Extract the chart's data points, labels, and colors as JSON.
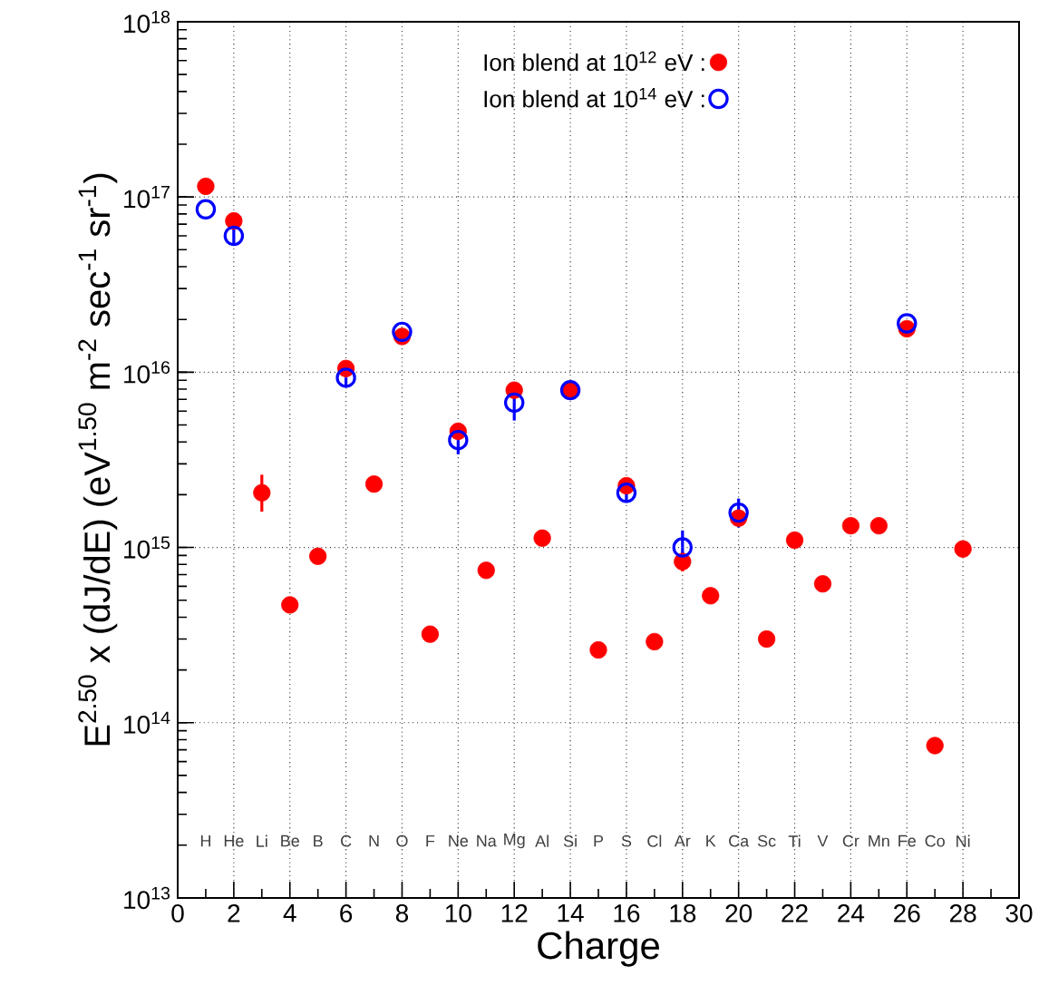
{
  "chart_data": {
    "type": "scatter",
    "xlabel": "Charge",
    "ylabel": "E$^{2.50}$ x (dJ/dE)  (eV$^{1.50}$ m$^{-2}$ sec$^{-1}$ sr$^{-1}$)",
    "log": "y",
    "grid": true,
    "legend": "top right",
    "marker": "circle",
    "xlim": [
      0,
      30
    ],
    "xticks": [
      0,
      2,
      4,
      6,
      8,
      10,
      12,
      14,
      16,
      18,
      20,
      22,
      24,
      26,
      28,
      30
    ],
    "ylim": [
      10000000000000.0,
      1e+18
    ],
    "yticks": [
      {
        "value": 10000000000000.0,
        "label": "10$^{13}$"
      },
      {
        "value": 100000000000000.0,
        "label": "10$^{14}$"
      },
      {
        "value": 1000000000000000.0,
        "label": "10$^{15}$"
      },
      {
        "value": 1e+16,
        "label": "10$^{16}$"
      },
      {
        "value": 1e+17,
        "label": "10$^{17}$"
      },
      {
        "value": 1e+18,
        "label": "10$^{18}$"
      }
    ],
    "series": [
      {
        "name": "Ion blend at 10$^{12}$ eV :",
        "color": "#ff0000",
        "x": [
          1,
          2,
          3,
          4,
          5,
          6,
          7,
          8,
          9,
          10,
          11,
          12,
          13,
          14,
          15,
          16,
          17,
          18,
          19,
          20,
          21,
          22,
          23,
          24,
          25,
          26,
          27,
          28
        ],
        "values": [
          1.15e+17,
          7.3e+16,
          2050000000000000.0,
          470000000000000.0,
          890000000000000.0,
          1.05e+16,
          2300000000000000.0,
          1.6e+16,
          320000000000000.0,
          4600000000000000.0,
          740000000000000.0,
          7900000000000000.0,
          1130000000000000.0,
          7900000000000000.0,
          260000000000000.0,
          2250000000000000.0,
          290000000000000.0,
          830000000000000.0,
          530000000000000.0,
          1470000000000000.0,
          300000000000000.0,
          1100000000000000.0,
          620000000000000.0,
          1330000000000000.0,
          1330000000000000.0,
          1.77e+16,
          74000000000000.0,
          980000000000000.0
        ],
        "errors": [
          null,
          null,
          [
            1600000000000000.0,
            2600000000000000.0
          ],
          null,
          null,
          null,
          null,
          null,
          [
            290000000000000.0,
            350000000000000.0
          ],
          null,
          null,
          null,
          null,
          null,
          null,
          null,
          null,
          [
            730000000000000.0,
            940000000000000.0
          ],
          null,
          null,
          null,
          null,
          null,
          null,
          null,
          null,
          null,
          null
        ]
      },
      {
        "name": "Ion blend at 10$^{14}$ eV :",
        "color": "#0000ff",
        "x": [
          1,
          2,
          6,
          8,
          10,
          12,
          14,
          16,
          18,
          20,
          26
        ],
        "values": [
          8.5e+16,
          6e+16,
          9300000000000000.0,
          1.7e+16,
          4100000000000000.0,
          6700000000000000.0,
          7900000000000000.0,
          2050000000000000.0,
          1000000000000000.0,
          1580000000000000.0,
          1.9e+16
        ],
        "errors": [
          null,
          [
            5.3e+16,
            6.8e+16
          ],
          [
            8300000000000000.0,
            1.05e+16
          ],
          null,
          [
            3400000000000000.0,
            5100000000000000.0
          ],
          [
            5300000000000000.0,
            8500000000000000.0
          ],
          null,
          [
            1800000000000000.0,
            2400000000000000.0
          ],
          [
            770000000000000.0,
            1250000000000000.0
          ],
          [
            1300000000000000.0,
            1900000000000000.0
          ],
          null
        ]
      }
    ],
    "annotations": [
      "H",
      "He",
      "Li",
      "Be",
      "B",
      "C",
      "N",
      "O",
      "F",
      "Ne",
      "Na",
      "Mg",
      "Al",
      "Si",
      "P",
      "S",
      "Cl",
      "Ar",
      "K",
      "Ca",
      "Sc",
      "Ti",
      "V",
      "Cr",
      "Mn",
      "Fe",
      "Co",
      "Ni"
    ]
  }
}
